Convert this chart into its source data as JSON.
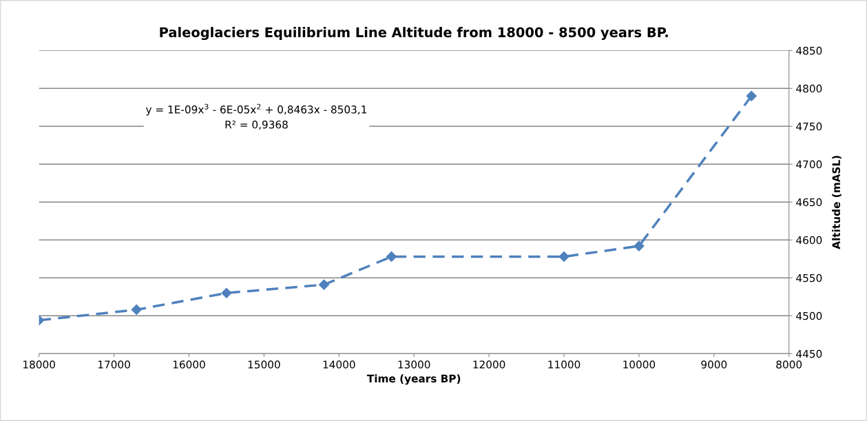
{
  "chart_data": {
    "type": "line",
    "title": "Paleoglaciers Equilibrium Line Altitude from 18000 - 8500 years BP.",
    "xlabel": "Time (years BP)",
    "ylabel": "Altitude (mASL)",
    "x": [
      18000,
      16700,
      15500,
      14200,
      13300,
      11000,
      10000,
      8500
    ],
    "series": [
      {
        "color": "#4f81bd",
        "values": [
          4494,
          4508,
          4530,
          4541,
          4578,
          4578,
          4592,
          4790
        ]
      }
    ],
    "xlim": [
      18000,
      8000
    ],
    "xticks": [
      18000,
      17000,
      16000,
      15000,
      14000,
      13000,
      12000,
      11000,
      10000,
      9000,
      8000
    ],
    "ylim": [
      4450,
      4850
    ],
    "yticks": [
      4450,
      4500,
      4550,
      4600,
      4650,
      4700,
      4750,
      4800,
      4850
    ],
    "grid": "y",
    "marker": "diamond",
    "line_style": "dashed",
    "annotations": [
      "y = 1E-09x$^{3}$ - 6E-05x$^{2}$ + 0,8463x - 8503,1\nR² = 0,9368"
    ]
  }
}
